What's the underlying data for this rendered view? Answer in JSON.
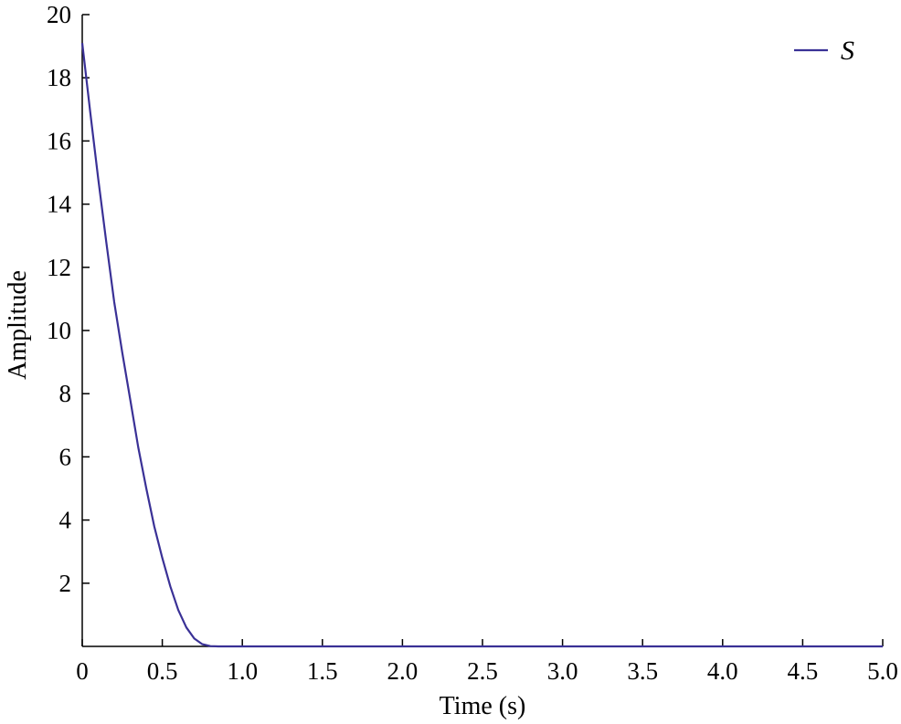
{
  "chart_data": {
    "type": "line",
    "title": "",
    "xlabel": "Time (s)",
    "ylabel": "Amplitude",
    "xlim": [
      0,
      5.0
    ],
    "ylim": [
      0,
      20
    ],
    "x_ticks": [
      "0",
      "0.5",
      "1.0",
      "1.5",
      "2.0",
      "2.5",
      "3.0",
      "3.5",
      "4.0",
      "4.5",
      "5.0"
    ],
    "x_tick_values": [
      0,
      0.5,
      1.0,
      1.5,
      2.0,
      2.5,
      3.0,
      3.5,
      4.0,
      4.5,
      5.0
    ],
    "y_ticks": [
      "2",
      "4",
      "6",
      "8",
      "10",
      "12",
      "14",
      "16",
      "18",
      "20"
    ],
    "y_tick_values": [
      2,
      4,
      6,
      8,
      10,
      12,
      14,
      16,
      18,
      20
    ],
    "grid": false,
    "legend_position": "top-right",
    "series": [
      {
        "name": "S",
        "color": "#3a3196",
        "x": [
          0,
          0.05,
          0.1,
          0.15,
          0.2,
          0.25,
          0.3,
          0.35,
          0.4,
          0.45,
          0.5,
          0.55,
          0.6,
          0.65,
          0.7,
          0.75,
          0.8,
          0.85,
          0.9,
          1.0,
          1.5,
          2.0,
          2.5,
          3.0,
          3.5,
          4.0,
          4.5,
          5.0
        ],
        "y": [
          19.1,
          16.9,
          14.8,
          12.8,
          10.9,
          9.3,
          7.8,
          6.3,
          5.0,
          3.8,
          2.8,
          1.9,
          1.15,
          0.6,
          0.25,
          0.07,
          0.01,
          0,
          0,
          0,
          0,
          0,
          0,
          0,
          0,
          0,
          0,
          0
        ]
      }
    ]
  }
}
